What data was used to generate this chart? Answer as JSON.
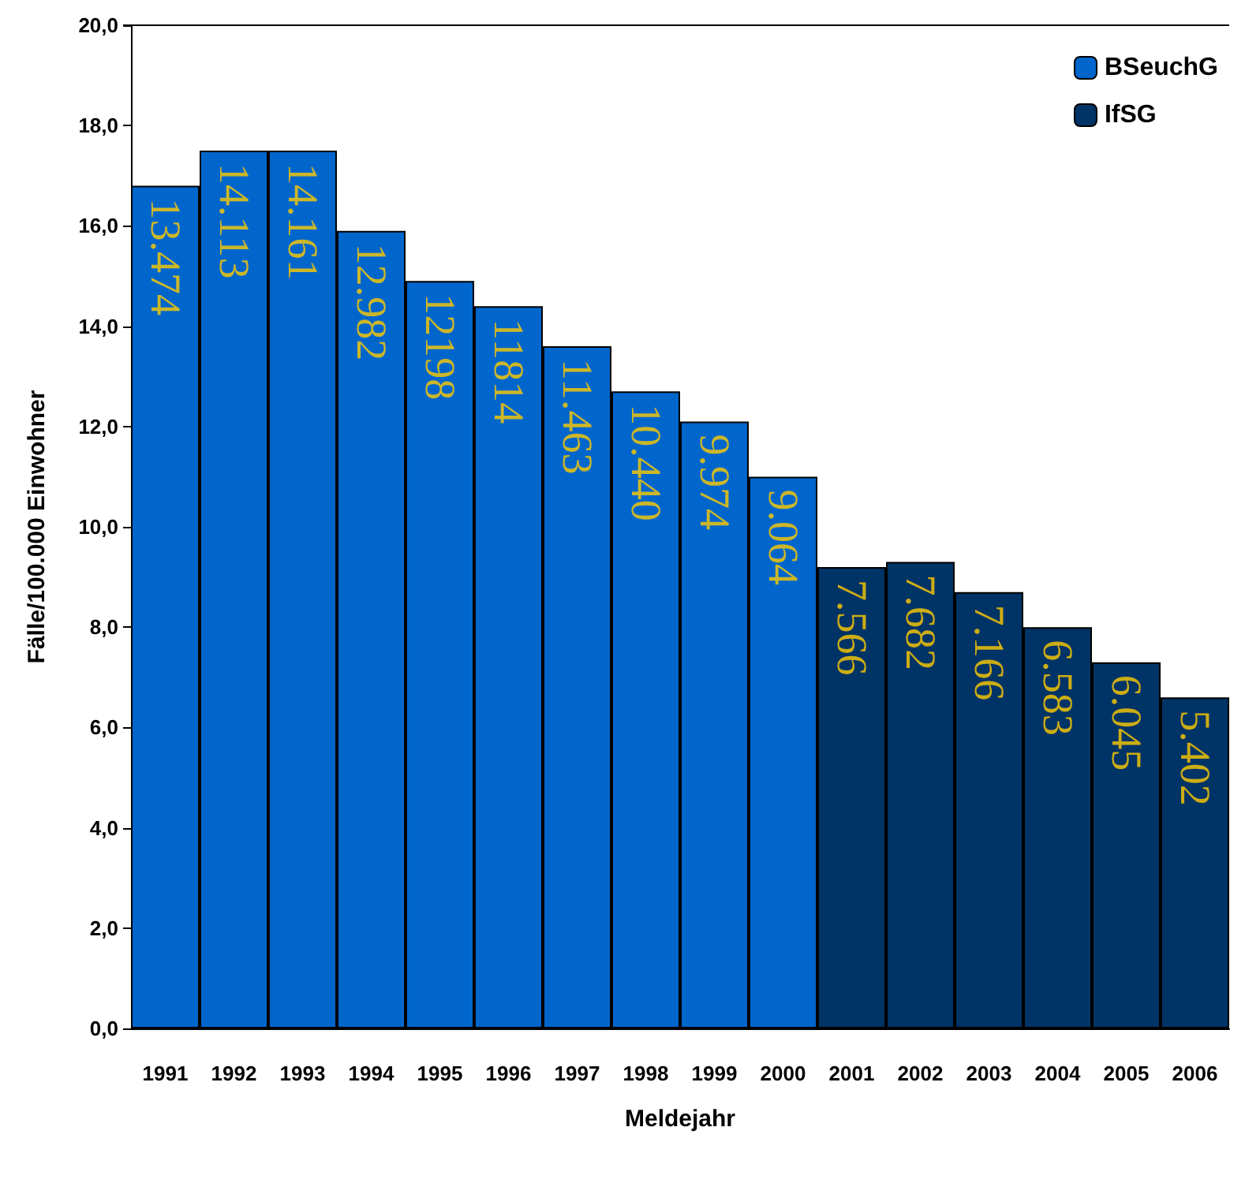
{
  "chart_data": {
    "type": "bar",
    "xlabel": "Meldejahr",
    "ylabel": "Fälle/100.000 Einwohner",
    "categories": [
      "1991",
      "1992",
      "1993",
      "1994",
      "1995",
      "1996",
      "1997",
      "1998",
      "1999",
      "2000",
      "2001",
      "2002",
      "2003",
      "2004",
      "2005",
      "2006"
    ],
    "series": [
      {
        "name": "BSeuchG",
        "color": "#0066cc",
        "values": [
          16.8,
          17.5,
          17.5,
          15.9,
          14.9,
          14.4,
          13.6,
          12.7,
          12.1,
          11.0,
          null,
          null,
          null,
          null,
          null,
          null
        ]
      },
      {
        "name": "IfSG",
        "color": "#003366",
        "values": [
          null,
          null,
          null,
          null,
          null,
          null,
          null,
          null,
          null,
          null,
          9.2,
          9.3,
          8.7,
          8.0,
          7.3,
          6.6
        ]
      }
    ],
    "annotations": [
      {
        "text": "13.474",
        "x": "1991",
        "y": 16.8
      },
      {
        "text": "14.113",
        "x": "1992",
        "y": 17.5
      },
      {
        "text": "14.161",
        "x": "1993",
        "y": 17.5
      },
      {
        "text": "12.982",
        "x": "1994",
        "y": 15.9
      },
      {
        "text": "12198",
        "x": "1995",
        "y": 14.9
      },
      {
        "text": "11814",
        "x": "1996",
        "y": 14.4
      },
      {
        "text": "11.463",
        "x": "1997",
        "y": 13.6
      },
      {
        "text": "10.440",
        "x": "1998",
        "y": 12.7
      },
      {
        "text": "9.974",
        "x": "1999",
        "y": 12.1
      },
      {
        "text": "9.064",
        "x": "2000",
        "y": 11.0
      },
      {
        "text": "7.566",
        "x": "2001",
        "y": 9.2
      },
      {
        "text": "7.682",
        "x": "2002",
        "y": 9.3
      },
      {
        "text": "7.166",
        "x": "2003",
        "y": 8.7
      },
      {
        "text": "6.583",
        "x": "2004",
        "y": 8.0
      },
      {
        "text": "6.045",
        "x": "2005",
        "y": 7.3
      },
      {
        "text": "5.402",
        "x": "2006",
        "y": 6.6
      }
    ],
    "ylim": [
      0,
      20
    ],
    "yticks": [
      {
        "value": 0,
        "label": "0,0"
      },
      {
        "value": 2,
        "label": "2,0"
      },
      {
        "value": 4,
        "label": "4,0"
      },
      {
        "value": 6,
        "label": "6,0"
      },
      {
        "value": 8,
        "label": "8,0"
      },
      {
        "value": 10,
        "label": "10,0"
      },
      {
        "value": 12,
        "label": "12,0"
      },
      {
        "value": 14,
        "label": "14,0"
      },
      {
        "value": 16,
        "label": "16,0"
      },
      {
        "value": 18,
        "label": "18,0"
      },
      {
        "value": 20,
        "label": "20,0"
      }
    ],
    "grid": false,
    "legend": "top right"
  }
}
